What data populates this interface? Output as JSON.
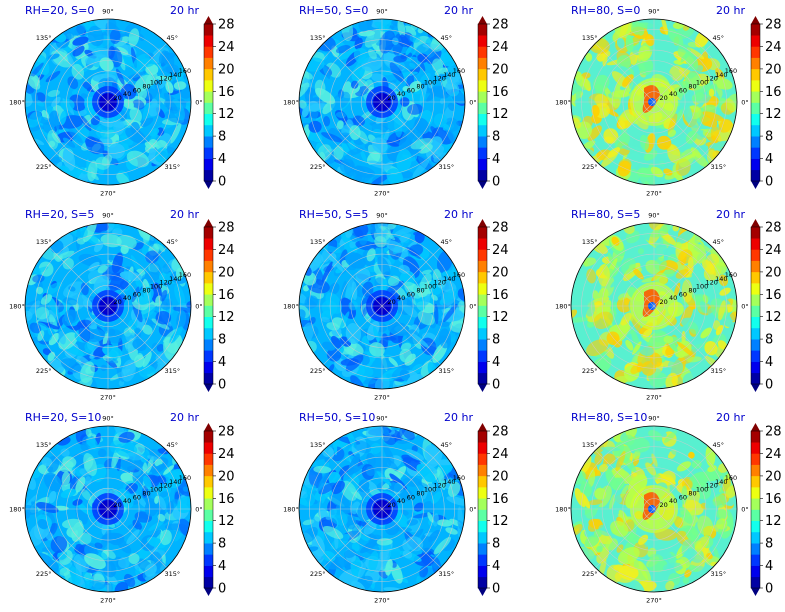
{
  "figure": {
    "colormap": "jet",
    "panel_colors": {
      "low_rh": [
        "#00a0ff",
        "#25c8ff",
        "#58f0e0",
        "#00c8ff",
        "#0060ff"
      ],
      "high_rh": [
        "#70ff90",
        "#b8ff48",
        "#58f0d0",
        "#f0f020",
        "#ffd000"
      ],
      "center_low": "#0000d0",
      "center_high": "#ff5000"
    }
  },
  "chart_data": [
    {
      "type": "polar-contourf",
      "title": "RH=20, S=0",
      "time_label": "20 hr",
      "angle_ticks": [
        "0°",
        "45°",
        "90°",
        "135°",
        "180°",
        "225°",
        "270°",
        "315°"
      ],
      "radial_ticks": [
        20,
        40,
        60,
        80,
        100,
        120,
        140,
        160
      ],
      "rmax": 160,
      "colorbar_ticks": [
        0,
        4,
        8,
        12,
        16,
        20,
        24,
        28
      ],
      "colorbar_range": [
        0,
        28
      ]
    },
    {
      "type": "polar-contourf",
      "title": "RH=50, S=0",
      "time_label": "20 hr",
      "angle_ticks": [
        "0°",
        "45°",
        "90°",
        "135°",
        "180°",
        "225°",
        "270°",
        "315°"
      ],
      "radial_ticks": [
        20,
        40,
        60,
        80,
        100,
        120,
        140,
        160
      ],
      "rmax": 160,
      "colorbar_ticks": [
        0,
        4,
        8,
        12,
        16,
        20,
        24,
        28
      ],
      "colorbar_range": [
        0,
        28
      ]
    },
    {
      "type": "polar-contourf",
      "title": "RH=80, S=0",
      "time_label": "20 hr",
      "angle_ticks": [
        "0°",
        "45°",
        "90°",
        "135°",
        "180°",
        "225°",
        "270°",
        "315°"
      ],
      "radial_ticks": [
        20,
        40,
        60,
        80,
        100,
        120,
        140,
        160
      ],
      "rmax": 160,
      "colorbar_ticks": [
        0,
        4,
        8,
        12,
        16,
        20,
        24,
        28
      ],
      "colorbar_range": [
        0,
        28
      ]
    },
    {
      "type": "polar-contourf",
      "title": "RH=20, S=5",
      "time_label": "20 hr",
      "angle_ticks": [
        "0°",
        "45°",
        "90°",
        "135°",
        "180°",
        "225°",
        "270°",
        "315°"
      ],
      "radial_ticks": [
        20,
        40,
        60,
        80,
        100,
        120,
        140,
        160
      ],
      "rmax": 160,
      "colorbar_ticks": [
        0,
        4,
        8,
        12,
        16,
        20,
        24,
        28
      ],
      "colorbar_range": [
        0,
        28
      ]
    },
    {
      "type": "polar-contourf",
      "title": "RH=50, S=5",
      "time_label": "20 hr",
      "angle_ticks": [
        "0°",
        "45°",
        "90°",
        "135°",
        "180°",
        "225°",
        "270°",
        "315°"
      ],
      "radial_ticks": [
        20,
        40,
        60,
        80,
        100,
        120,
        140,
        160
      ],
      "rmax": 160,
      "colorbar_ticks": [
        0,
        4,
        8,
        12,
        16,
        20,
        24,
        28
      ],
      "colorbar_range": [
        0,
        28
      ]
    },
    {
      "type": "polar-contourf",
      "title": "RH=80, S=5",
      "time_label": "20 hr",
      "angle_ticks": [
        "0°",
        "45°",
        "90°",
        "135°",
        "180°",
        "225°",
        "270°",
        "315°"
      ],
      "radial_ticks": [
        20,
        40,
        60,
        80,
        100,
        120,
        140,
        160
      ],
      "rmax": 160,
      "colorbar_ticks": [
        0,
        4,
        8,
        12,
        16,
        20,
        24,
        28
      ],
      "colorbar_range": [
        0,
        28
      ]
    },
    {
      "type": "polar-contourf",
      "title": "RH=20, S=10",
      "time_label": "20 hr",
      "angle_ticks": [
        "0°",
        "45°",
        "90°",
        "135°",
        "180°",
        "225°",
        "270°",
        "315°"
      ],
      "radial_ticks": [
        20,
        40,
        60,
        80,
        100,
        120,
        140,
        160
      ],
      "rmax": 160,
      "colorbar_ticks": [
        0,
        4,
        8,
        12,
        16,
        20,
        24,
        28
      ],
      "colorbar_range": [
        0,
        28
      ]
    },
    {
      "type": "polar-contourf",
      "title": "RH=50, S=10",
      "time_label": "20 hr",
      "angle_ticks": [
        "0°",
        "45°",
        "90°",
        "135°",
        "180°",
        "225°",
        "270°",
        "315°"
      ],
      "radial_ticks": [
        20,
        40,
        60,
        80,
        100,
        120,
        140,
        160
      ],
      "rmax": 160,
      "colorbar_ticks": [
        0,
        4,
        8,
        12,
        16,
        20,
        24,
        28
      ],
      "colorbar_range": [
        0,
        28
      ]
    },
    {
      "type": "polar-contourf",
      "title": "RH=80, S=10",
      "time_label": "20 hr",
      "angle_ticks": [
        "0°",
        "45°",
        "90°",
        "135°",
        "180°",
        "225°",
        "270°",
        "315°"
      ],
      "radial_ticks": [
        20,
        40,
        60,
        80,
        100,
        120,
        140,
        160
      ],
      "rmax": 160,
      "colorbar_ticks": [
        0,
        4,
        8,
        12,
        16,
        20,
        24,
        28
      ],
      "colorbar_range": [
        0,
        28
      ]
    }
  ]
}
